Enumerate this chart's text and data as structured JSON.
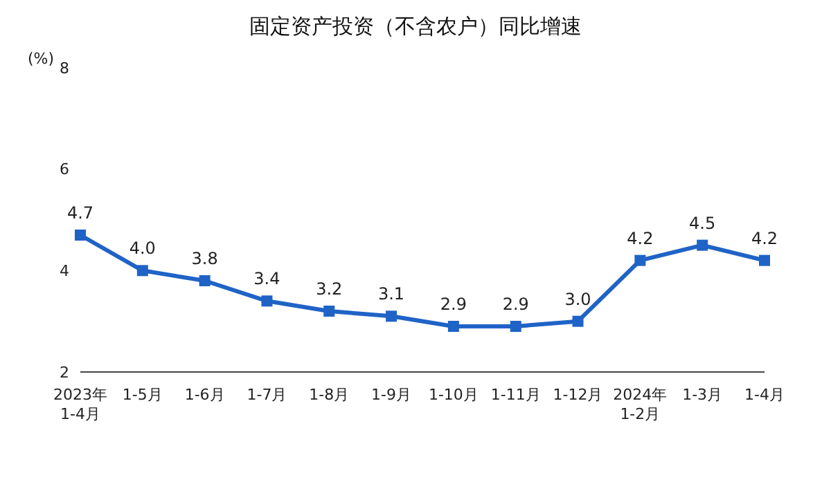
{
  "chart_data": {
    "type": "line",
    "title": "固定资产投资（不含农户）同比增速",
    "ylabel": "(%)",
    "categories": [
      "2023年\n1-4月",
      "1-5月",
      "1-6月",
      "1-7月",
      "1-8月",
      "1-9月",
      "1-10月",
      "1-11月",
      "1-12月",
      "2024年\n1-2月",
      "1-3月",
      "1-4月"
    ],
    "series": [
      {
        "color": "#1f63c6",
        "values": [
          4.7,
          4.0,
          3.8,
          3.4,
          3.2,
          3.1,
          2.9,
          2.9,
          3.0,
          4.2,
          4.5,
          4.2
        ],
        "value_labels": [
          "4.7",
          "4.0",
          "3.8",
          "3.4",
          "3.2",
          "3.1",
          "2.9",
          "2.9",
          "3.0",
          "4.2",
          "4.5",
          "4.2"
        ]
      }
    ],
    "ylim": [
      2,
      8
    ],
    "yticks": [
      2,
      4,
      6,
      8
    ],
    "marker": "square",
    "line_style": "solid"
  }
}
